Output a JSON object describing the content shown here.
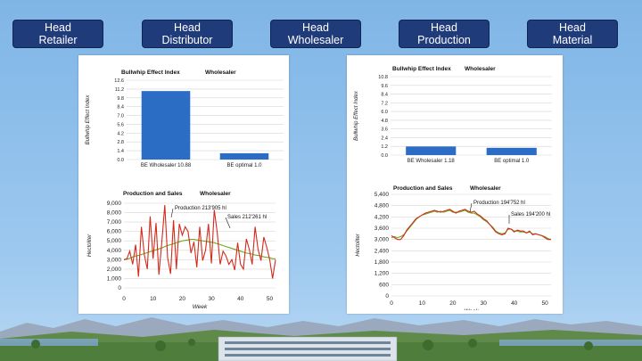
{
  "tabs": [
    {
      "line1": "Head",
      "line2": "Retailer"
    },
    {
      "line1": "Head",
      "line2": "Distributor"
    },
    {
      "line1": "Head",
      "line2": "Wholesaler"
    },
    {
      "line1": "Head",
      "line2": "Production"
    },
    {
      "line1": "Head",
      "line2": "Material"
    }
  ],
  "colors": {
    "tab": "#1f3b7a",
    "bar": "#2b6cc4",
    "production": "#d42a1c",
    "sales": "#6aaa1e"
  },
  "chart_data": [
    {
      "type": "bar",
      "panel": "left",
      "title": "Bullwhip Effect Index",
      "subtitle": "Wholesaler",
      "ylabel": "Bullwhip Effect Index",
      "xlabel": "",
      "categories": [
        "BE Wholesaler 10.88",
        "BE optimal 1.0"
      ],
      "values": [
        10.88,
        1.0
      ],
      "ylim": [
        0,
        12.6
      ],
      "yticks": [
        "0.0",
        "1.4",
        "2.8",
        "4.2",
        "5.6",
        "7.0",
        "8.4",
        "9.8",
        "11.2",
        "12.6"
      ]
    },
    {
      "type": "line",
      "panel": "left",
      "title": "Production and Sales",
      "subtitle": "Wholesaler",
      "ylabel": "Hectoliter",
      "xlabel": "Week",
      "xlim": [
        0,
        52
      ],
      "ylim": [
        0,
        9000
      ],
      "xticks": [
        "0",
        "10",
        "20",
        "30",
        "40",
        "50"
      ],
      "yticks": [
        "0",
        "1,000",
        "2,000",
        "3,000",
        "4,000",
        "5,000",
        "6,000",
        "7,000",
        "8,000",
        "9,000"
      ],
      "series": [
        {
          "name": "Production",
          "label": "Production 213'905 hl",
          "values": [
            3000,
            3100,
            3900,
            2500,
            4600,
            1200,
            6500,
            3500,
            2000,
            7600,
            3100,
            6900,
            1400,
            4900,
            8800,
            3200,
            1500,
            7200,
            2000,
            6800,
            5600,
            6500,
            6000,
            3700,
            4900,
            2200,
            6500,
            2900,
            4000,
            6800,
            2600,
            8300,
            5900,
            2500,
            3900,
            3400,
            2500,
            3000,
            1900,
            4800,
            2500,
            2000,
            5200,
            4100,
            2500,
            6500,
            4100,
            2900,
            5400,
            4300,
            3000,
            1000,
            3000
          ]
        },
        {
          "name": "Sales",
          "label": "Sales 212'261 hl",
          "values": [
            3000,
            3050,
            3150,
            3300,
            3400,
            3450,
            3550,
            3650,
            3750,
            3850,
            3950,
            4050,
            4150,
            4250,
            4400,
            4500,
            4600,
            4700,
            4800,
            4900,
            5000,
            5050,
            5100,
            5150,
            5150,
            5100,
            5050,
            5000,
            4950,
            4900,
            4850,
            4800,
            4700,
            4600,
            4500,
            4400,
            4300,
            4200,
            4100,
            4000,
            3900,
            3800,
            3700,
            3650,
            3600,
            3500,
            3450,
            3400,
            3300,
            3250,
            3200,
            3100,
            3100
          ]
        }
      ]
    },
    {
      "type": "bar",
      "panel": "right",
      "title": "Bullwhip Effect Index",
      "subtitle": "Wholesaler",
      "ylabel": "Bullwhip Effect Index",
      "xlabel": "",
      "categories": [
        "BE Wholesaler 1.18",
        "BE optimal 1.0"
      ],
      "values": [
        1.18,
        1.0
      ],
      "ylim": [
        0,
        10.8
      ],
      "yticks": [
        "0.0",
        "1.2",
        "2.4",
        "3.6",
        "4.8",
        "6.0",
        "7.2",
        "8.4",
        "9.6",
        "10.8"
      ]
    },
    {
      "type": "line",
      "panel": "right",
      "title": "Production and Sales",
      "subtitle": "Wholesaler",
      "ylabel": "Hectoliter",
      "xlabel": "Week",
      "xlim": [
        0,
        52
      ],
      "ylim": [
        0,
        5400
      ],
      "xticks": [
        "0",
        "10",
        "20",
        "30",
        "40",
        "50"
      ],
      "yticks": [
        "0",
        "600",
        "1,200",
        "1,800",
        "2,400",
        "3,000",
        "3,600",
        "4,200",
        "4,800",
        "5,400"
      ],
      "series": [
        {
          "name": "Production",
          "label": "Production 194'752 hl",
          "values": [
            3200,
            3100,
            3000,
            3000,
            3200,
            3500,
            3700,
            3900,
            4100,
            4200,
            4300,
            4400,
            4450,
            4500,
            4550,
            4500,
            4450,
            4500,
            4550,
            4600,
            4500,
            4400,
            4500,
            4550,
            4600,
            4500,
            4450,
            4500,
            4350,
            4250,
            4100,
            4000,
            3800,
            3600,
            3400,
            3300,
            3250,
            3300,
            3600,
            3550,
            3400,
            3500,
            3450,
            3450,
            3350,
            3450,
            3250,
            3300,
            3250,
            3200,
            3100,
            3000,
            3000
          ]
        },
        {
          "name": "Sales",
          "label": "Sales 194'200 hl",
          "values": [
            3100,
            3150,
            3100,
            3150,
            3250,
            3450,
            3650,
            3850,
            4050,
            4200,
            4300,
            4350,
            4400,
            4450,
            4500,
            4450,
            4500,
            4450,
            4500,
            4550,
            4450,
            4450,
            4450,
            4500,
            4550,
            4450,
            4400,
            4400,
            4300,
            4200,
            4050,
            3950,
            3800,
            3650,
            3450,
            3350,
            3300,
            3350,
            3550,
            3550,
            3450,
            3450,
            3400,
            3400,
            3350,
            3400,
            3300,
            3300,
            3250,
            3200,
            3150,
            3050,
            3000
          ]
        }
      ]
    }
  ]
}
